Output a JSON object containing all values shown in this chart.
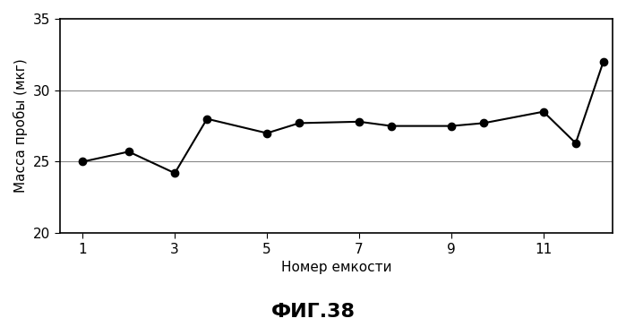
{
  "x": [
    1,
    2.0,
    3,
    3.7,
    5,
    5.7,
    7,
    7.7,
    9,
    9.7,
    11,
    11.7,
    12.3
  ],
  "y": [
    25.0,
    25.7,
    24.2,
    28.0,
    27.0,
    27.7,
    27.8,
    27.5,
    27.5,
    27.7,
    28.5,
    26.3,
    32.0
  ],
  "xlabel": "Номер емкости",
  "ylabel": "Масса пробы (мкг)",
  "title": "ФИГ.38",
  "xlim": [
    0.5,
    12.5
  ],
  "ylim": [
    20,
    35
  ],
  "yticks": [
    20,
    25,
    30,
    35
  ],
  "xticks": [
    1,
    3,
    5,
    7,
    9,
    11
  ],
  "line_color": "#000000",
  "marker": "o",
  "markersize": 6,
  "linewidth": 1.5,
  "background_color": "#ffffff",
  "grid_color": "#888888",
  "title_fontsize": 16,
  "label_fontsize": 11,
  "tick_fontsize": 11
}
